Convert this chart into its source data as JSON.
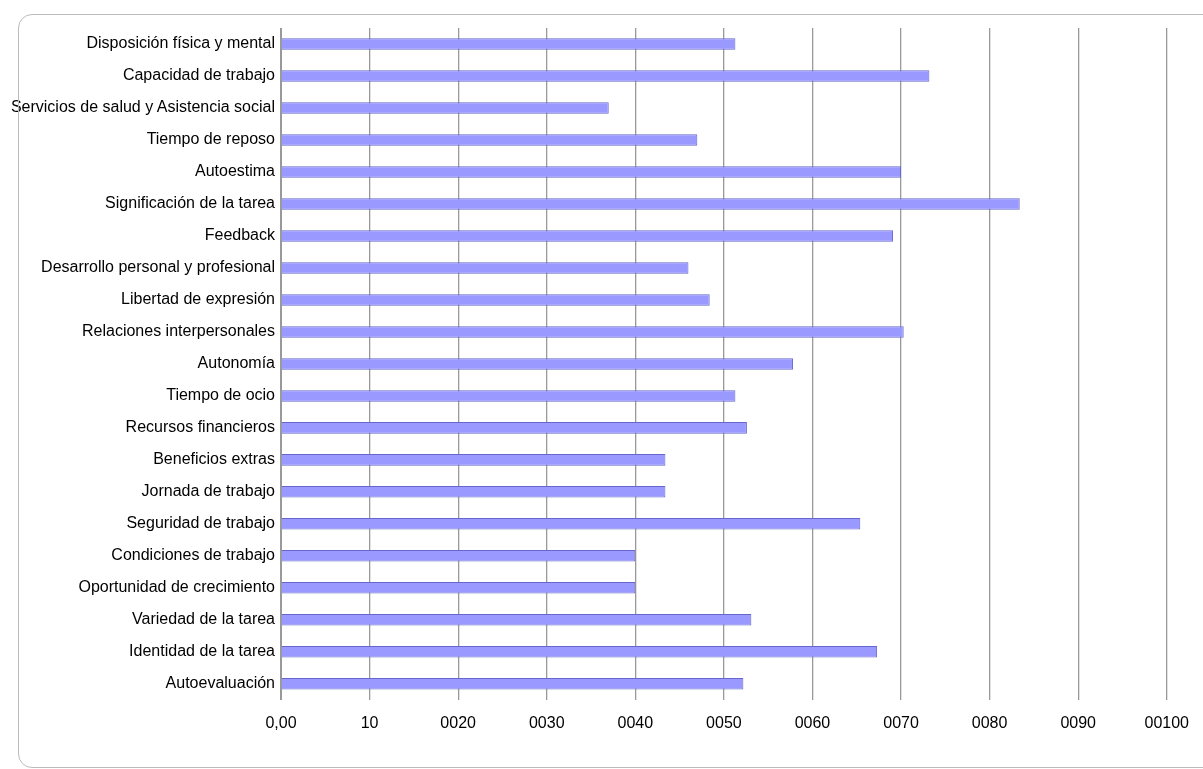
{
  "chart_data": {
    "type": "bar",
    "orientation": "horizontal",
    "categories": [
      "Disposición física y mental",
      "Capacidad de trabajo",
      "Servicios de salud y Asistencia social",
      "Tiempo de reposo",
      "Autoestima",
      "Significación de la tarea",
      "Feedback",
      "Desarrollo personal y profesional",
      "Libertad de expresión",
      "Relaciones interpersonales",
      "Autonomía",
      "Tiempo de ocio",
      "Recursos financieros",
      "Beneficios extras",
      "Jornada de trabajo",
      "Seguridad de trabajo",
      "Condiciones de trabajo",
      "Oportunidad de crecimiento",
      "Variedad de la tarea",
      "Identidad de la tarea",
      "Autoevaluación"
    ],
    "values": [
      51.3,
      73.2,
      37.0,
      47.0,
      70.0,
      83.4,
      69.1,
      46.0,
      48.4,
      70.3,
      57.8,
      51.3,
      52.6,
      43.4,
      43.4,
      65.4,
      40.0,
      40.0,
      53.1,
      67.3,
      52.2
    ],
    "color": "#9999ff",
    "xlim": [
      0,
      100
    ],
    "xticks": [
      {
        "value": 0,
        "label": "0,00"
      },
      10,
      {
        "value": 20,
        "label": "0020"
      },
      {
        "value": 30,
        "label": "0030"
      },
      {
        "value": 40,
        "label": "0040"
      },
      {
        "value": 50,
        "label": "0050"
      },
      {
        "value": 60,
        "label": "0060"
      },
      {
        "value": 70,
        "label": "0070"
      },
      {
        "value": 80,
        "label": "0080"
      },
      {
        "value": 90,
        "label": "0090"
      },
      {
        "value": 100,
        "label": "00100"
      }
    ],
    "grid": "x"
  }
}
